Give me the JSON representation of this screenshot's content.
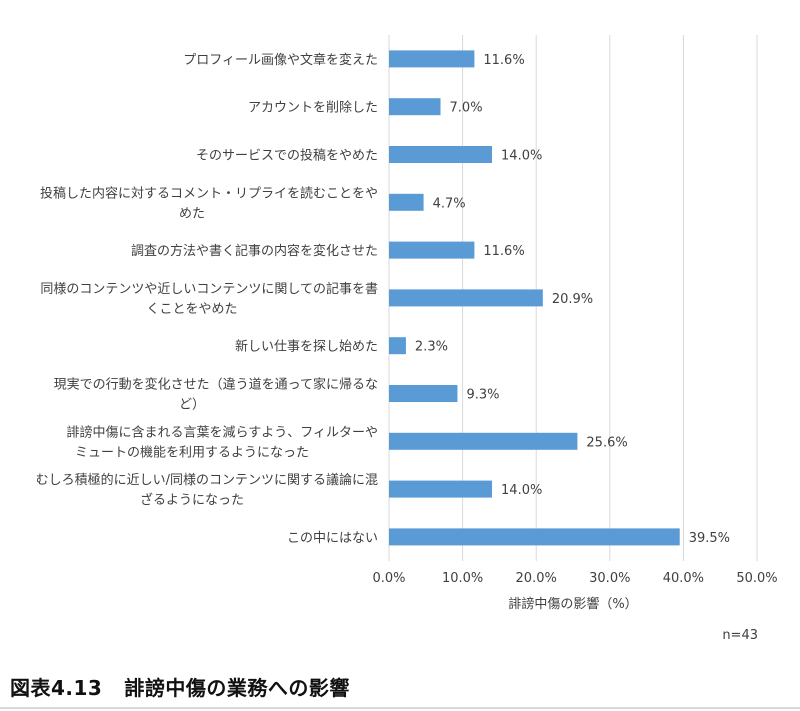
{
  "chart_data": {
    "type": "bar",
    "orientation": "horizontal",
    "categories": [
      [
        "プロフィール画像や文章を変えた"
      ],
      [
        "アカウントを削除した"
      ],
      [
        "そのサービスでの投稿をやめた"
      ],
      [
        "投稿した内容に対するコメント・リプライを読むことをや",
        "めた"
      ],
      [
        "調査の方法や書く記事の内容を変化させた"
      ],
      [
        "同様のコンテンツや近しいコンテンツに関しての記事を書",
        "くことをやめた"
      ],
      [
        "新しい仕事を探し始めた"
      ],
      [
        "現実での行動を変化させた（違う道を通って家に帰るな",
        "ど）"
      ],
      [
        "誹謗中傷に含まれる言葉を減らすよう、フィルターや",
        "ミュートの機能を利用するようになった"
      ],
      [
        "むしろ積極的に近しい/同様のコンテンツに関する議論に混",
        "ざるようになった"
      ],
      [
        "この中にはない"
      ]
    ],
    "values": [
      11.6,
      7.0,
      14.0,
      4.7,
      11.6,
      20.9,
      2.3,
      9.3,
      25.6,
      14.0,
      39.5
    ],
    "value_labels": [
      "11.6%",
      "7.0%",
      "14.0%",
      "4.7%",
      "11.6%",
      "20.9%",
      "2.3%",
      "9.3%",
      "25.6%",
      "14.0%",
      "39.5%"
    ],
    "x_ticks": [
      0,
      10,
      20,
      30,
      40,
      50
    ],
    "x_tick_labels": [
      "0.0%",
      "10.0%",
      "20.0%",
      "30.0%",
      "40.0%",
      "50.0%"
    ],
    "xlim": [
      0,
      50
    ],
    "xlabel": "誹謗中傷の影響（%）",
    "grid": true,
    "bar_color": "#5b9bd5",
    "grid_color": "#d9d9d9"
  },
  "note": "n=43",
  "caption": {
    "number": "図表4.13",
    "title": "誹謗中傷の業務への影響"
  }
}
